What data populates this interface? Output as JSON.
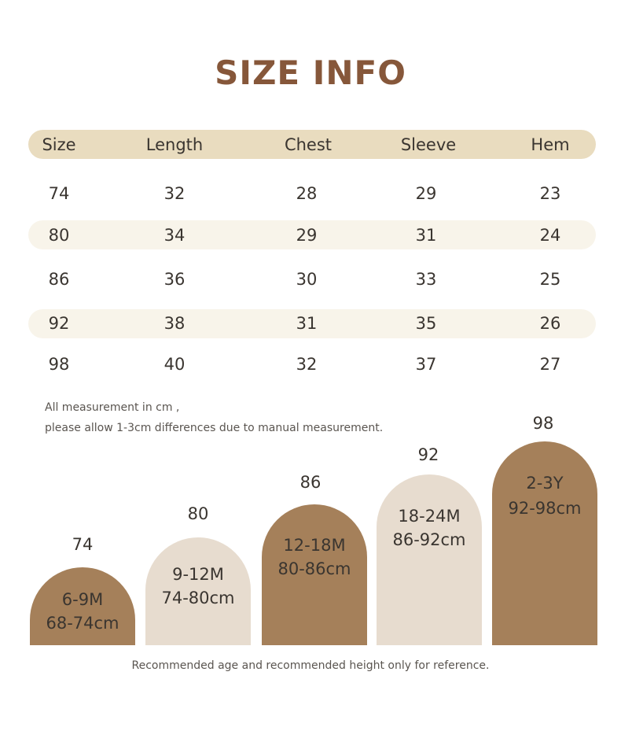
{
  "title": "SIZE INFO",
  "table": {
    "headers": [
      "Size",
      "Length",
      "Chest",
      "Sleeve",
      "Hem"
    ],
    "rows": [
      [
        "74",
        "32",
        "28",
        "29",
        "23"
      ],
      [
        "80",
        "34",
        "29",
        "31",
        "24"
      ],
      [
        "86",
        "36",
        "30",
        "33",
        "25"
      ],
      [
        "92",
        "38",
        "31",
        "35",
        "26"
      ],
      [
        "98",
        "40",
        "32",
        "37",
        "27"
      ]
    ]
  },
  "notes": {
    "line1": "All measurement in cm ,",
    "line2": "please allow 1-3cm differences due to manual measurement."
  },
  "arches": [
    {
      "size": "74",
      "age": "6-9M",
      "height": "68-74cm",
      "tone": "dark"
    },
    {
      "size": "80",
      "age": "9-12M",
      "height": "74-80cm",
      "tone": "light"
    },
    {
      "size": "86",
      "age": "12-18M",
      "height": "80-86cm",
      "tone": "dark"
    },
    {
      "size": "92",
      "age": "18-24M",
      "height": "86-92cm",
      "tone": "light"
    },
    {
      "size": "98",
      "age": "2-3Y",
      "height": "92-98cm",
      "tone": "dark"
    }
  ],
  "footer": "Recommended age and recommended height only for reference.",
  "colors": {
    "title": "#86573a",
    "header_band": "#e9dcbf",
    "row_band": "#f8f4ea",
    "arch_dark": "#a5805a",
    "arch_light": "#e7dccf"
  }
}
